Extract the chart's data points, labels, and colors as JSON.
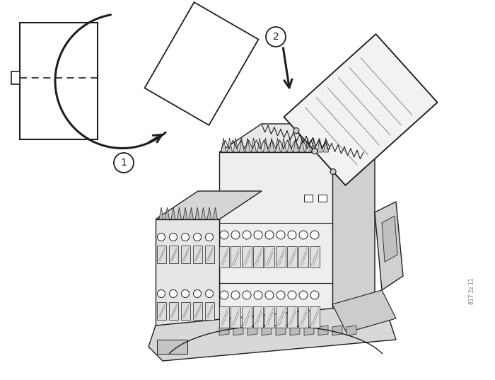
{
  "bg_color": "#ffffff",
  "fig_width": 7.0,
  "fig_height": 5.37,
  "dpi": 100,
  "watermark_text": "817 2z 11",
  "line_color": [
    30,
    30,
    30
  ],
  "light_gray": [
    200,
    200,
    200
  ],
  "mid_gray": [
    160,
    160,
    160
  ],
  "dark_gray": [
    100,
    100,
    100
  ],
  "white": [
    255,
    255,
    255
  ]
}
